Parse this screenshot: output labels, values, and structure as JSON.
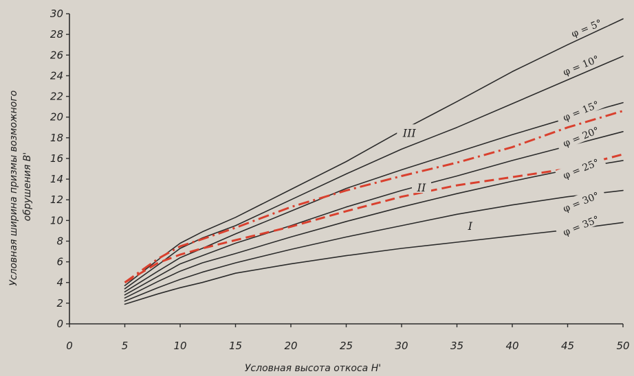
{
  "chart_data": {
    "type": "line",
    "xlabel": "Условная высота откоса H'",
    "ylabel_lines": [
      "Условная ширина призмы возможного",
      "обрушения B'"
    ],
    "xlim": [
      0,
      50
    ],
    "ylim": [
      0,
      30
    ],
    "x_ticks": [
      0,
      5,
      10,
      15,
      20,
      25,
      30,
      35,
      40,
      45,
      50
    ],
    "y_ticks": [
      0,
      2,
      4,
      6,
      8,
      10,
      12,
      14,
      16,
      18,
      20,
      22,
      24,
      26,
      28,
      30
    ],
    "grid": false,
    "colors": {
      "curve": "#2b2b2b",
      "dashed": "#d9402e",
      "background": "#d9d4cc",
      "axis": "#2b2b2b"
    },
    "series": [
      {
        "name": "φ = 5°",
        "style": "solid",
        "x": [
          5,
          8,
          10,
          12,
          15,
          20,
          25,
          30,
          35,
          40,
          45,
          50
        ],
        "y": [
          3.7,
          6.2,
          7.8,
          8.9,
          10.3,
          13.0,
          15.7,
          18.7,
          21.5,
          24.4,
          27.0,
          29.5
        ]
      },
      {
        "name": "φ = 10°",
        "style": "solid",
        "x": [
          5,
          8,
          10,
          12,
          15,
          20,
          25,
          30,
          35,
          40,
          45,
          50
        ],
        "y": [
          3.4,
          5.7,
          7.3,
          8.3,
          9.5,
          12.0,
          14.5,
          16.9,
          19.0,
          21.3,
          23.6,
          25.9
        ]
      },
      {
        "name": "φ = 15°",
        "style": "solid",
        "x": [
          5,
          8,
          10,
          12,
          15,
          20,
          25,
          30,
          35,
          40,
          45,
          50
        ],
        "y": [
          3.1,
          5.1,
          6.4,
          7.3,
          8.7,
          10.9,
          13.1,
          14.9,
          16.6,
          18.3,
          19.9,
          21.4
        ]
      },
      {
        "name": "φ = 20°",
        "style": "solid",
        "x": [
          5,
          8,
          10,
          12,
          15,
          20,
          25,
          30,
          35,
          40,
          45,
          50
        ],
        "y": [
          2.8,
          4.6,
          5.8,
          6.6,
          7.8,
          9.5,
          11.3,
          12.9,
          14.3,
          15.8,
          17.2,
          18.6
        ]
      },
      {
        "name": "φ = 25°",
        "style": "solid",
        "x": [
          5,
          8,
          10,
          12,
          15,
          20,
          25,
          30,
          35,
          40,
          45,
          50
        ],
        "y": [
          2.5,
          4.1,
          5.1,
          5.9,
          6.8,
          8.4,
          9.9,
          11.3,
          12.6,
          13.8,
          14.9,
          15.8
        ]
      },
      {
        "name": "φ = 30°",
        "style": "solid",
        "x": [
          5,
          8,
          10,
          12,
          15,
          20,
          25,
          30,
          35,
          40,
          45,
          50
        ],
        "y": [
          2.2,
          3.5,
          4.3,
          5.0,
          5.9,
          7.2,
          8.4,
          9.5,
          10.6,
          11.5,
          12.3,
          12.9
        ]
      },
      {
        "name": "φ = 35°",
        "style": "solid",
        "x": [
          5,
          8,
          10,
          12,
          15,
          20,
          25,
          30,
          35,
          40,
          45,
          50
        ],
        "y": [
          1.9,
          2.9,
          3.5,
          4.0,
          4.9,
          5.8,
          6.6,
          7.3,
          7.9,
          8.5,
          9.1,
          9.8
        ]
      },
      {
        "name": "",
        "style": "dashdot",
        "x": [
          5,
          8,
          10,
          12,
          15,
          20,
          25,
          30,
          35,
          40,
          45,
          50
        ],
        "y": [
          4.0,
          6.3,
          7.5,
          8.2,
          9.3,
          11.3,
          12.9,
          14.3,
          15.6,
          17.1,
          19.0,
          20.6
        ]
      },
      {
        "name": "",
        "style": "dashed",
        "x": [
          5,
          8,
          10,
          12,
          15,
          20,
          25,
          30,
          35,
          40,
          45,
          50
        ],
        "y": [
          4.0,
          5.9,
          6.7,
          7.3,
          8.1,
          9.4,
          10.9,
          12.3,
          13.4,
          14.2,
          15.0,
          16.4
        ]
      }
    ],
    "curve_labels": [
      {
        "text": "φ = 5°",
        "x": 46.7,
        "y": 28.6
      },
      {
        "text": "φ = 10°",
        "x": 46.2,
        "y": 25.0
      },
      {
        "text": "φ = 15°",
        "x": 46.2,
        "y": 20.6
      },
      {
        "text": "φ = 20°",
        "x": 46.2,
        "y": 18.1
      },
      {
        "text": "φ = 25°",
        "x": 46.2,
        "y": 15.0
      },
      {
        "text": "φ = 30°",
        "x": 46.2,
        "y": 11.8
      },
      {
        "text": "φ = 35°",
        "x": 46.2,
        "y": 9.5
      }
    ],
    "region_labels": [
      {
        "text": "III",
        "x": 30.7,
        "y": 18.5
      },
      {
        "text": "II",
        "x": 31.8,
        "y": 13.2
      },
      {
        "text": "I",
        "x": 36.2,
        "y": 9.5
      }
    ]
  }
}
